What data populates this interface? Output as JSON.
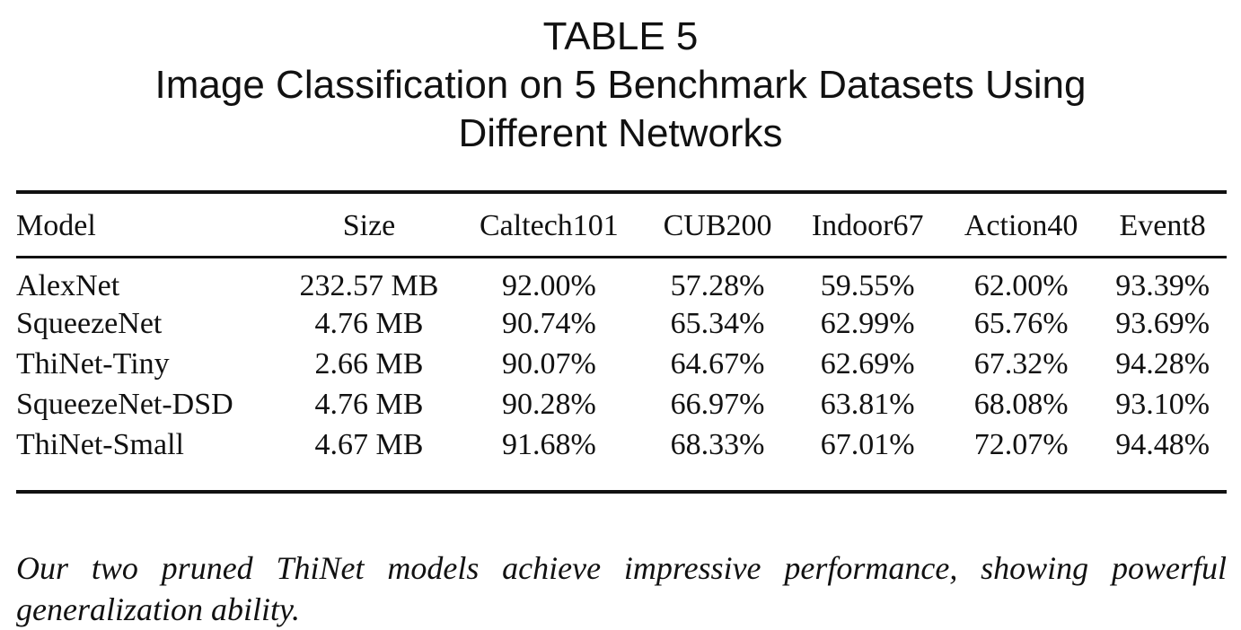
{
  "caption": {
    "label": "TABLE 5",
    "title_line1": "Image Classification on 5 Benchmark Datasets Using",
    "title_line2": "Different Networks"
  },
  "table": {
    "headers": [
      "Model",
      "Size",
      "Caltech101",
      "CUB200",
      "Indoor67",
      "Action40",
      "Event8"
    ],
    "rows": [
      [
        "AlexNet",
        "232.57 MB",
        "92.00%",
        "57.28%",
        "59.55%",
        "62.00%",
        "93.39%"
      ],
      [
        "SqueezeNet",
        "4.76 MB",
        "90.74%",
        "65.34%",
        "62.99%",
        "65.76%",
        "93.69%"
      ],
      [
        "ThiNet-Tiny",
        "2.66 MB",
        "90.07%",
        "64.67%",
        "62.69%",
        "67.32%",
        "94.28%"
      ],
      [
        "SqueezeNet-DSD",
        "4.76 MB",
        "90.28%",
        "66.97%",
        "63.81%",
        "68.08%",
        "93.10%"
      ],
      [
        "ThiNet-Small",
        "4.67 MB",
        "91.68%",
        "68.33%",
        "67.01%",
        "72.07%",
        "94.48%"
      ]
    ]
  },
  "note": "Our two pruned ThiNet models achieve impressive performance, showing powerful generalization ability."
}
